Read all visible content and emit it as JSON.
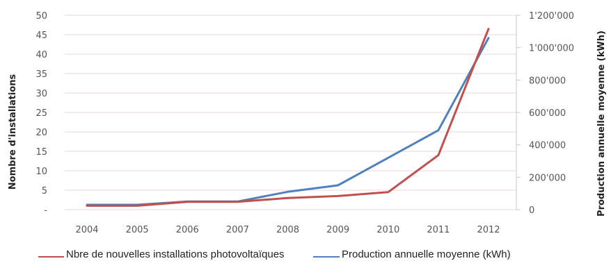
{
  "chart_data": {
    "type": "line",
    "categories": [
      "2004",
      "2005",
      "2006",
      "2007",
      "2008",
      "2009",
      "2010",
      "2011",
      "2012"
    ],
    "series": [
      {
        "name": "Nbre de nouvelles installations photovoltaïques",
        "axis": "left",
        "color": "#c0504d",
        "values": [
          1,
          1,
          2,
          2,
          3,
          3.5,
          4.5,
          14,
          46.5
        ]
      },
      {
        "name": "Production annuelle moyenne (kWh)",
        "axis": "right",
        "color": "#4f81bd",
        "values": [
          30000,
          30000,
          50000,
          50000,
          110000,
          150000,
          320000,
          490000,
          1060000
        ]
      }
    ],
    "y_left": {
      "label": "Nombre d'installations",
      "range": [
        0,
        50
      ],
      "ticks": [
        "-",
        "5",
        "10",
        "15",
        "20",
        "25",
        "30",
        "35",
        "40",
        "45",
        "50"
      ]
    },
    "y_right": {
      "label": "Production annuelle moyenne (kWh)",
      "range": [
        0,
        1200000
      ],
      "ticks": [
        "0",
        "200'000",
        "400'000",
        "600'000",
        "800'000",
        "1'000'000",
        "1'200'000"
      ]
    },
    "grid": "horizontal",
    "legend": "bottom"
  }
}
